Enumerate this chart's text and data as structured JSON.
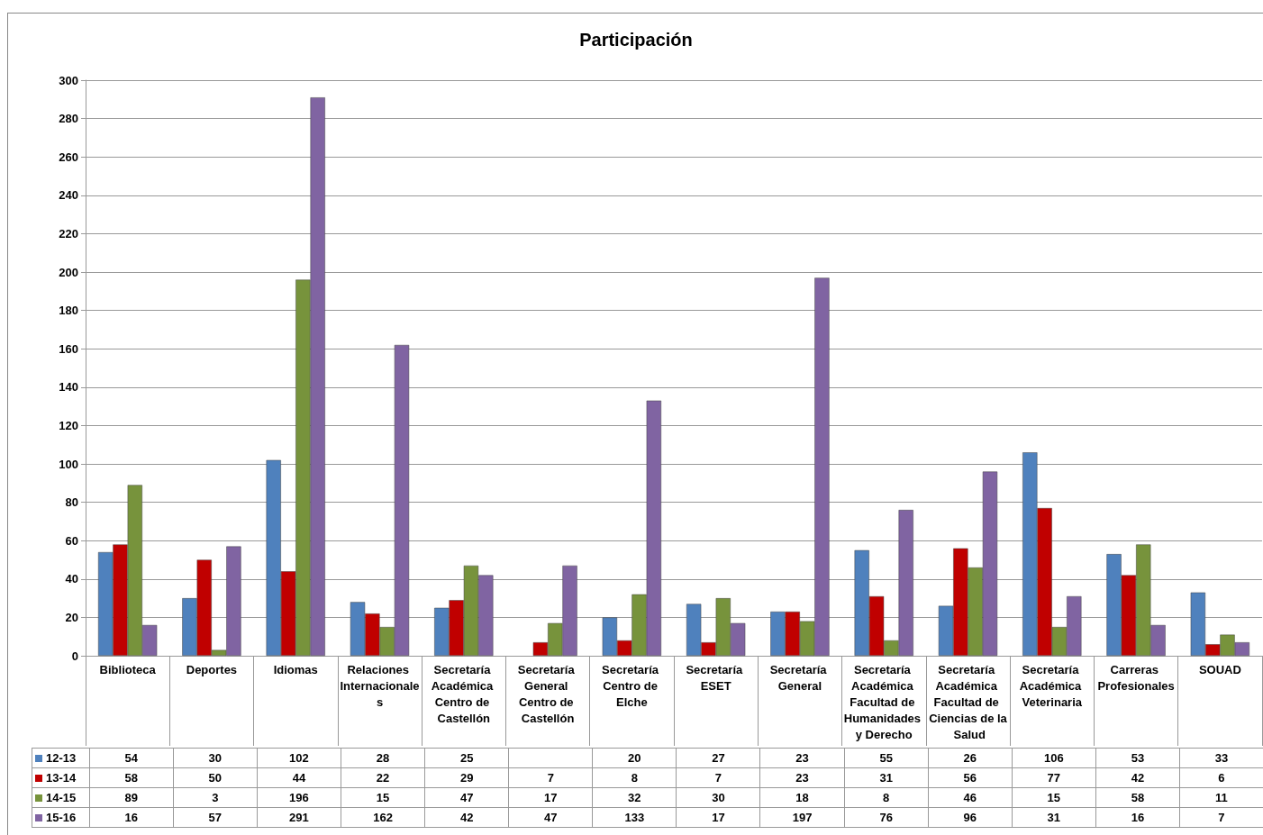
{
  "chart_data": {
    "type": "bar",
    "title": "Participación",
    "categories": [
      "Biblioteca",
      "Deportes",
      "Idiomas",
      "Relaciones Internacionales",
      "Secretaría Académica Centro de Castellón",
      "Secretaría General Centro de Castellón",
      "Secretaría Centro de Elche",
      "Secretaría ESET",
      "Secretaría General",
      "Secretaría Académica Facultad de Humanidades y Derecho",
      "Secretaría Académica Facultad de Ciencias de la Salud",
      "Secretaría Académica Veterinaria",
      "Carreras Profesionales",
      "SOUAD"
    ],
    "series": [
      {
        "name": "12-13",
        "color": "#4f81bd",
        "values": [
          54,
          30,
          102,
          28,
          25,
          null,
          20,
          27,
          23,
          55,
          26,
          106,
          53,
          33
        ]
      },
      {
        "name": "13-14",
        "color": "#c00000",
        "values": [
          58,
          50,
          44,
          22,
          29,
          7,
          8,
          7,
          23,
          31,
          56,
          77,
          42,
          6
        ]
      },
      {
        "name": "14-15",
        "color": "#77933c",
        "values": [
          89,
          3,
          196,
          15,
          47,
          17,
          32,
          30,
          18,
          8,
          46,
          15,
          58,
          11
        ]
      },
      {
        "name": "15-16",
        "color": "#8064a2",
        "values": [
          16,
          57,
          291,
          162,
          42,
          47,
          133,
          17,
          197,
          76,
          96,
          31,
          16,
          7
        ]
      }
    ],
    "ylim": [
      0,
      300
    ],
    "yticks": [
      0,
      20,
      40,
      60,
      80,
      100,
      120,
      140,
      160,
      180,
      200,
      220,
      240,
      260,
      280,
      300
    ],
    "grid": "y",
    "legend": "bottom left",
    "data_labels": true
  }
}
